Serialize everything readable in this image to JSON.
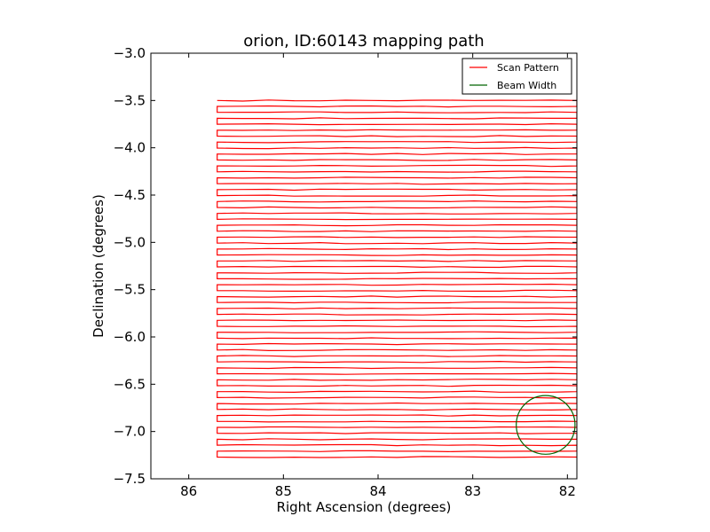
{
  "chart_data": {
    "type": "line",
    "title": "orion, ID:60143 mapping path",
    "xlabel": "Right Ascension (degrees)",
    "ylabel": "Declination (degrees)",
    "xlim": [
      86.4,
      81.9
    ],
    "ylim": [
      -7.5,
      -3.0
    ],
    "xticks": [
      86,
      85,
      84,
      83,
      82
    ],
    "xtick_labels": [
      "86",
      "85",
      "84",
      "83",
      "82"
    ],
    "yticks": [
      -3.0,
      -3.5,
      -4.0,
      -4.5,
      -5.0,
      -5.5,
      -6.0,
      -6.5,
      -7.0,
      -7.5
    ],
    "ytick_labels": [
      "−3.0",
      "−3.5",
      "−4.0",
      "−4.5",
      "−5.0",
      "−5.5",
      "−6.0",
      "−6.5",
      "−7.0",
      "−7.5"
    ],
    "legend_position": "upper right",
    "grid": false,
    "series": [
      {
        "name": "Scan Pattern",
        "color": "#ff0000",
        "description": "boustrophedon raster scan",
        "ra_range": [
          85.7,
          81.9
        ],
        "dec_start": -3.5,
        "dec_end": -7.27,
        "row_spacing": 0.063
      },
      {
        "name": "Beam Width",
        "color": "#006400",
        "shape": "circle",
        "center": [
          82.23,
          -6.93
        ],
        "radius": 0.31
      }
    ]
  }
}
